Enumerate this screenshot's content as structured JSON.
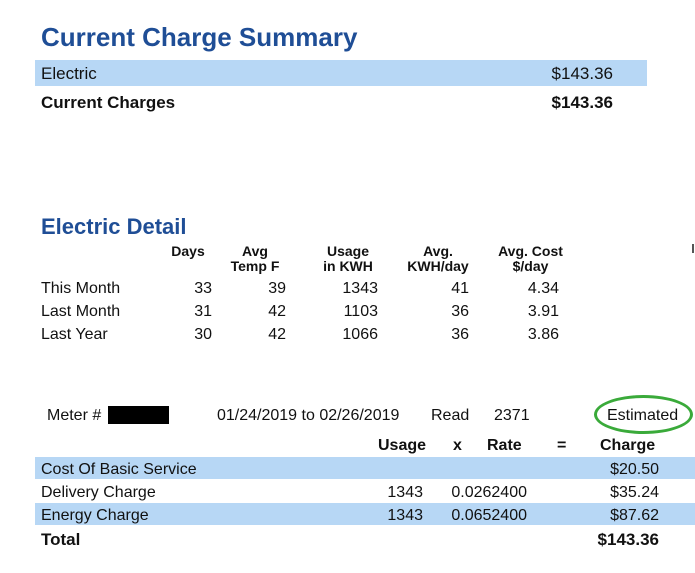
{
  "summary": {
    "title": "Current Charge Summary",
    "electric_label": "Electric",
    "electric_amount": "$143.36",
    "current_charges_label": "Current Charges",
    "current_charges_amount": "$143.36"
  },
  "detail": {
    "title": "Electric Detail",
    "headers": {
      "days": "Days",
      "temp_line1": "Avg",
      "temp_line2": "Temp F",
      "usage_line1": "Usage",
      "usage_line2": "in KWH",
      "kwh_line1": "Avg.",
      "kwh_line2": "KWH/day",
      "cost_line1": "Avg. Cost",
      "cost_line2": "$/day"
    },
    "rows": [
      {
        "label": "This Month",
        "days": "33",
        "temp": "39",
        "usage": "1343",
        "kwh_day": "41",
        "cost_day": "4.34"
      },
      {
        "label": "Last Month",
        "days": "31",
        "temp": "42",
        "usage": "1103",
        "kwh_day": "36",
        "cost_day": "3.91"
      },
      {
        "label": "Last Year",
        "days": "30",
        "temp": "42",
        "usage": "1066",
        "kwh_day": "36",
        "cost_day": "3.86"
      }
    ]
  },
  "meter": {
    "label": "Meter #",
    "period": "01/24/2019 to 02/26/2019",
    "read_label": "Read",
    "read_value": "2371",
    "status": "Estimated"
  },
  "charges": {
    "headers": {
      "usage": "Usage",
      "x": "x",
      "rate": "Rate",
      "eq": "=",
      "charge": "Charge"
    },
    "rows": [
      {
        "label": "Cost Of Basic Service",
        "usage": "",
        "rate": "",
        "charge": "$20.50"
      },
      {
        "label": "Delivery Charge",
        "usage": "1343",
        "rate": "0.0262400",
        "charge": "$35.24"
      },
      {
        "label": "Energy Charge",
        "usage": "1343",
        "rate": "0.0652400",
        "charge": "$87.62"
      }
    ],
    "total_label": "Total",
    "total_amount": "$143.36"
  },
  "colors": {
    "heading": "#1f4e96",
    "band": "#b7d7f5",
    "highlight_oval": "#3aaa3a",
    "redaction": "#000000"
  }
}
